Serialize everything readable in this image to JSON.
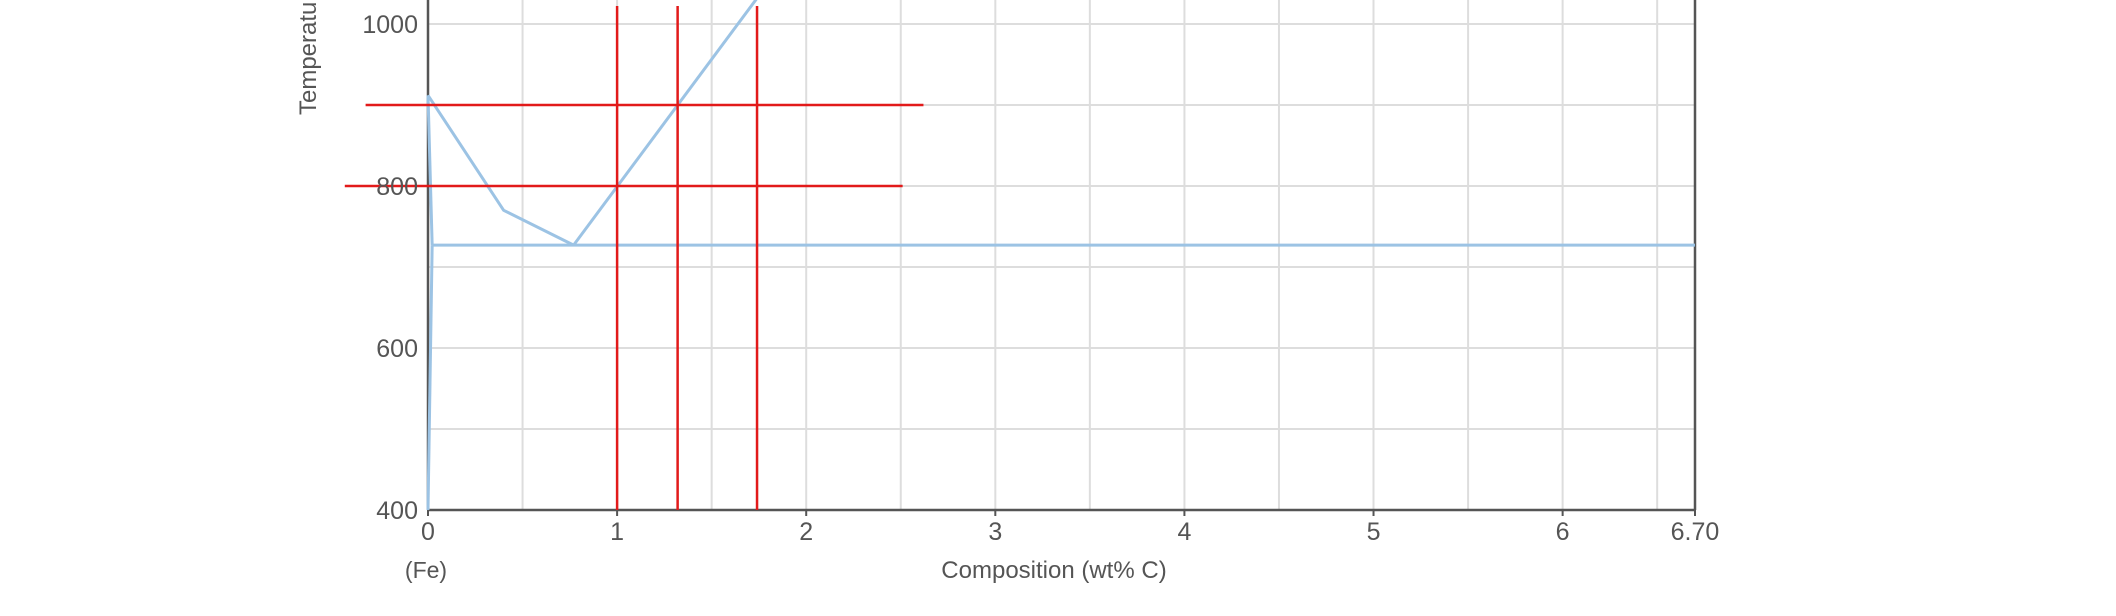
{
  "chart_data": {
    "type": "line",
    "xlabel": "Composition (wt% C)",
    "ylabel": "Temperature",
    "x_sub_label": "(Fe)",
    "xlim": [
      0,
      6.7
    ],
    "ylim": [
      400,
      1000
    ],
    "x_ticks": [
      "0",
      "1",
      "2",
      "3",
      "4",
      "5",
      "6",
      "6.70"
    ],
    "x_tick_values": [
      0,
      1,
      2,
      3,
      4,
      5,
      6,
      6.7
    ],
    "y_ticks": [
      "400",
      "600",
      "800",
      "1000"
    ],
    "y_tick_values": [
      400,
      600,
      800,
      1000
    ],
    "grid": true,
    "phase_lines": [
      {
        "x": [
          0,
          0.4,
          0.77
        ],
        "y": [
          912,
          770,
          727
        ]
      },
      {
        "x": [
          0,
          0.022
        ],
        "y": [
          912,
          727
        ]
      },
      {
        "x": [
          0,
          0.022
        ],
        "y": [
          400,
          727
        ]
      },
      {
        "x": [
          0.022,
          6.7
        ],
        "y": [
          727,
          727
        ]
      },
      {
        "x": [
          0.77,
          1.75
        ],
        "y": [
          727,
          1035
        ]
      }
    ],
    "marker_lines": {
      "color": "#e21a1a",
      "vertical_x": [
        1.0,
        1.32,
        1.74
      ],
      "horizontal": [
        {
          "y": 900,
          "x_range": [
            -0.33,
            2.62
          ]
        },
        {
          "y": 800,
          "x_range": [
            -0.44,
            2.51
          ]
        }
      ]
    },
    "colors": {
      "phase_line": "#9cc3e4",
      "grid": "#dddddd",
      "axis": "#555555"
    }
  }
}
